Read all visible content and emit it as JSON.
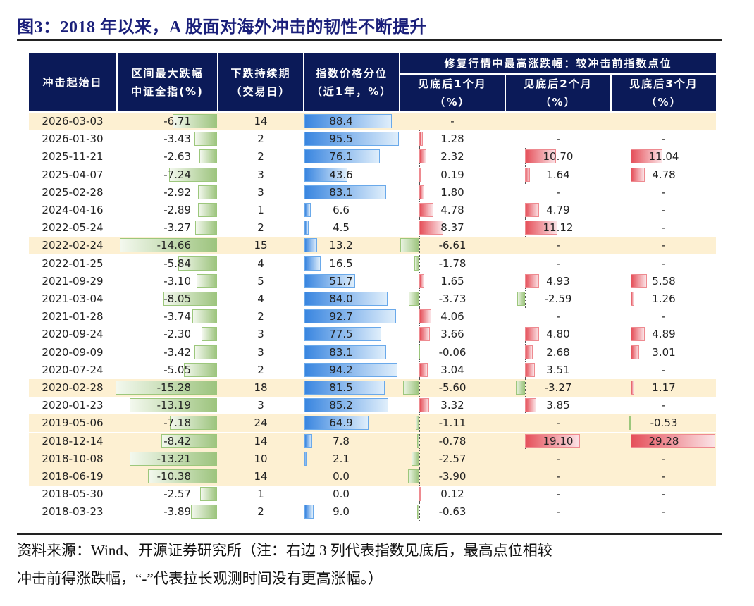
{
  "title": "图3：2018 年以来，A 股面对海外冲击的韧性不断提升",
  "headers": {
    "date": "冲击起始日",
    "max_drop": [
      "区间最大跌幅",
      "中证全指(%)"
    ],
    "duration": [
      "下跌持续期",
      "（交易日）"
    ],
    "percentile": [
      "指数价格分位",
      "（近1年，%）"
    ],
    "recovery_group": "修复行情中最高涨跌幅：较冲击前指数点位",
    "m1": [
      "见底后1个月",
      "（%）"
    ],
    "m2": [
      "见底后2个月",
      "（%）"
    ],
    "m3": [
      "见底后3个月",
      "（%）"
    ]
  },
  "colors": {
    "header_bg": "#0b1a58",
    "highlight_row": "#fdf0d2",
    "drop_bar": "#9dc47e",
    "percentile_bar": "#3a86e0",
    "gain_bar": "#e5505a",
    "title": "#1a1f7a"
  },
  "rows": [
    {
      "date": "2026-03-03",
      "drop": "-6.71",
      "days": "14",
      "pct": "88.4",
      "m1": "-",
      "m2": "",
      "m3": "",
      "highlighted": true
    },
    {
      "date": "2026-01-30",
      "drop": "-3.43",
      "days": "2",
      "pct": "95.5",
      "m1": "1.28",
      "m2": "-",
      "m3": "-",
      "highlighted": false
    },
    {
      "date": "2025-11-21",
      "drop": "-2.63",
      "days": "2",
      "pct": "76.1",
      "m1": "2.32",
      "m2": "10.70",
      "m3": "11.04",
      "highlighted": false
    },
    {
      "date": "2025-04-07",
      "drop": "-7.24",
      "days": "3",
      "pct": "43.6",
      "m1": "0.19",
      "m2": "1.64",
      "m3": "4.78",
      "highlighted": false
    },
    {
      "date": "2025-02-28",
      "drop": "-2.92",
      "days": "3",
      "pct": "83.1",
      "m1": "1.80",
      "m2": "-",
      "m3": "-",
      "highlighted": false
    },
    {
      "date": "2024-04-16",
      "drop": "-2.89",
      "days": "1",
      "pct": "6.6",
      "m1": "4.78",
      "m2": "4.79",
      "m3": "-",
      "highlighted": false
    },
    {
      "date": "2022-05-24",
      "drop": "-3.27",
      "days": "2",
      "pct": "4.5",
      "m1": "8.37",
      "m2": "11.12",
      "m3": "-",
      "highlighted": false
    },
    {
      "date": "2022-02-24",
      "drop": "-14.66",
      "days": "15",
      "pct": "13.2",
      "m1": "-6.61",
      "m2": "-",
      "m3": "-",
      "highlighted": true
    },
    {
      "date": "2022-01-25",
      "drop": "-5.84",
      "days": "4",
      "pct": "16.5",
      "m1": "-1.78",
      "m2": "-",
      "m3": "-",
      "highlighted": false
    },
    {
      "date": "2021-09-29",
      "drop": "-3.10",
      "days": "5",
      "pct": "51.7",
      "m1": "1.65",
      "m2": "4.93",
      "m3": "5.58",
      "highlighted": false
    },
    {
      "date": "2021-03-04",
      "drop": "-8.05",
      "days": "4",
      "pct": "84.0",
      "m1": "-3.73",
      "m2": "-2.59",
      "m3": "1.26",
      "highlighted": false
    },
    {
      "date": "2021-01-28",
      "drop": "-3.74",
      "days": "2",
      "pct": "92.7",
      "m1": "4.06",
      "m2": "-",
      "m3": "-",
      "highlighted": false
    },
    {
      "date": "2020-09-24",
      "drop": "-2.30",
      "days": "3",
      "pct": "77.5",
      "m1": "3.66",
      "m2": "4.80",
      "m3": "4.89",
      "highlighted": false
    },
    {
      "date": "2020-09-09",
      "drop": "-3.42",
      "days": "3",
      "pct": "83.1",
      "m1": "-0.06",
      "m2": "2.68",
      "m3": "3.01",
      "highlighted": false
    },
    {
      "date": "2020-07-24",
      "drop": "-5.05",
      "days": "2",
      "pct": "94.2",
      "m1": "3.04",
      "m2": "3.51",
      "m3": "-",
      "highlighted": false
    },
    {
      "date": "2020-02-28",
      "drop": "-15.28",
      "days": "18",
      "pct": "81.5",
      "m1": "-5.60",
      "m2": "-3.27",
      "m3": "1.17",
      "highlighted": true
    },
    {
      "date": "2020-01-23",
      "drop": "-13.19",
      "days": "3",
      "pct": "85.2",
      "m1": "3.32",
      "m2": "3.85",
      "m3": "-",
      "highlighted": false
    },
    {
      "date": "2019-05-06",
      "drop": "-7.18",
      "days": "24",
      "pct": "64.9",
      "m1": "-1.11",
      "m2": "-",
      "m3": "-0.53",
      "highlighted": true
    },
    {
      "date": "2018-12-14",
      "drop": "-8.42",
      "days": "14",
      "pct": "7.8",
      "m1": "-0.78",
      "m2": "19.10",
      "m3": "29.28",
      "highlighted": true
    },
    {
      "date": "2018-10-08",
      "drop": "-13.21",
      "days": "10",
      "pct": "2.1",
      "m1": "-2.57",
      "m2": "-",
      "m3": "-",
      "highlighted": true
    },
    {
      "date": "2018-06-19",
      "drop": "-10.38",
      "days": "14",
      "pct": "0.0",
      "m1": "-3.90",
      "m2": "-",
      "m3": "-",
      "highlighted": true
    },
    {
      "date": "2018-05-30",
      "drop": "-2.57",
      "days": "1",
      "pct": "0.0",
      "m1": "0.12",
      "m2": "-",
      "m3": "-",
      "highlighted": false
    },
    {
      "date": "2018-03-23",
      "drop": "-3.89",
      "days": "2",
      "pct": "9.0",
      "m1": "-0.63",
      "m2": "-",
      "m3": "-",
      "highlighted": false
    }
  ],
  "footnote": [
    "资料来源：Wind、开源证券研究所（注：右边 3 列代表指数见底后，最高点位相较",
    "冲击前得涨跌幅，“-”代表拉长观测时间没有更高涨幅。）"
  ]
}
